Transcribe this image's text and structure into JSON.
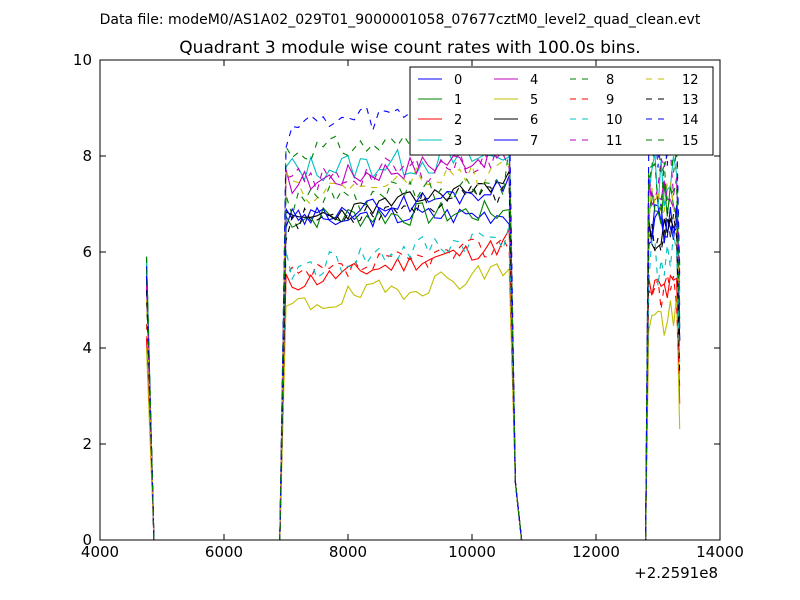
{
  "chart_data": {
    "type": "line",
    "suptitle": "Data file: modeM0/AS1A02_029T01_9000001058_07677cztM0_level2_quad_clean.evt",
    "title": "Quadrant 3 module wise count rates with 100.0s bins.",
    "xlabel": "",
    "ylabel": "",
    "x_offset_label": "+2.2591e8",
    "xlim": [
      4000,
      14000
    ],
    "ylim": [
      0,
      10
    ],
    "xticks": [
      4000,
      6000,
      8000,
      10000,
      12000,
      14000
    ],
    "xtick_labels": [
      "4000",
      "6000",
      "8000",
      "10000",
      "12000",
      "14000"
    ],
    "yticks": [
      0,
      2,
      4,
      6,
      8,
      10
    ],
    "ytick_labels": [
      "0",
      "2",
      "4",
      "6",
      "8",
      "10"
    ],
    "legend_location": "upper-right",
    "legend_columns": 4,
    "segments": {
      "seg1": {
        "x": [
          4750,
          4850,
          4870
        ]
      },
      "seg2": {
        "x_start": 6900,
        "x_end": 10800,
        "step": 100
      },
      "seg3": {
        "x_start": 12800,
        "x_end": 13350,
        "step": 50
      }
    },
    "series": [
      {
        "name": "0",
        "color": "#0000ff",
        "dash": "solid",
        "seg1": [
          5.6,
          1.0,
          0
        ],
        "mean": 6.7,
        "peak": 6.6,
        "ramp": 0.12,
        "noise": 0.22,
        "seed": 3
      },
      {
        "name": "1",
        "color": "#008000",
        "dash": "solid",
        "seg1": [
          5.9,
          1.0,
          0
        ],
        "mean": 6.7,
        "peak": 7.0,
        "ramp": 0.15,
        "noise": 0.25,
        "seed": 7
      },
      {
        "name": "2",
        "color": "#ff0000",
        "dash": "solid",
        "seg1": [
          4.2,
          0.8,
          0
        ],
        "mean": 5.3,
        "peak": 5.2,
        "ramp": 0.9,
        "noise": 0.2,
        "seed": 11
      },
      {
        "name": "3",
        "color": "#00bfbf",
        "dash": "solid",
        "seg1": [
          5.8,
          1.0,
          0
        ],
        "mean": 7.7,
        "peak": 7.5,
        "ramp": 0.3,
        "noise": 0.3,
        "seed": 13
      },
      {
        "name": "4",
        "color": "#bf00bf",
        "dash": "solid",
        "seg1": [
          5.5,
          1.0,
          0
        ],
        "mean": 7.4,
        "peak": 7.2,
        "ramp": 0.7,
        "noise": 0.25,
        "seed": 17
      },
      {
        "name": "5",
        "color": "#bfbf00",
        "dash": "solid",
        "seg1": [
          4.0,
          0.7,
          0
        ],
        "mean": 4.8,
        "peak": 4.6,
        "ramp": 0.9,
        "noise": 0.25,
        "seed": 19
      },
      {
        "name": "6",
        "color": "#000000",
        "dash": "solid",
        "seg1": [
          5.4,
          1.0,
          0
        ],
        "mean": 6.6,
        "peak": 6.4,
        "ramp": 0.9,
        "noise": 0.18,
        "seed": 23
      },
      {
        "name": "7",
        "color": "#0000ff",
        "dash": "solid",
        "seg1": [
          5.5,
          1.0,
          0
        ],
        "mean": 6.6,
        "peak": 6.6,
        "ramp": 0.8,
        "noise": 0.22,
        "seed": 29
      },
      {
        "name": "8",
        "color": "#008000",
        "dash": "dashed",
        "seg1": [
          5.9,
          1.0,
          0
        ],
        "mean": 8.1,
        "peak": 7.9,
        "ramp": 0.3,
        "noise": 0.25,
        "seed": 31
      },
      {
        "name": "9",
        "color": "#ff0000",
        "dash": "dashed",
        "seg1": [
          4.5,
          0.9,
          0
        ],
        "mean": 5.4,
        "peak": 5.3,
        "ramp": 0.8,
        "noise": 0.25,
        "seed": 37
      },
      {
        "name": "10",
        "color": "#00bfbf",
        "dash": "dashed",
        "seg1": [
          5.0,
          1.0,
          0
        ],
        "mean": 5.6,
        "peak": 5.8,
        "ramp": 0.8,
        "noise": 0.3,
        "seed": 41
      },
      {
        "name": "11",
        "color": "#bf00bf",
        "dash": "dashed",
        "seg1": [
          5.3,
          1.0,
          0
        ],
        "mean": 7.4,
        "peak": 7.6,
        "ramp": 0.6,
        "noise": 0.3,
        "seed": 43
      },
      {
        "name": "12",
        "color": "#bfbf00",
        "dash": "dashed",
        "seg1": [
          5.0,
          1.0,
          0
        ],
        "mean": 7.2,
        "peak": 7.0,
        "ramp": 0.5,
        "noise": 0.3,
        "seed": 47
      },
      {
        "name": "13",
        "color": "#000000",
        "dash": "dashed",
        "seg1": [
          5.2,
          1.0,
          0
        ],
        "mean": 6.6,
        "peak": 6.4,
        "ramp": 0.7,
        "noise": 0.25,
        "seed": 53
      },
      {
        "name": "14",
        "color": "#0000ff",
        "dash": "dashed",
        "seg1": [
          5.7,
          1.0,
          0
        ],
        "mean": 8.6,
        "peak": 8.3,
        "ramp": 0.5,
        "noise": 0.3,
        "seed": 59
      },
      {
        "name": "15",
        "color": "#008000",
        "dash": "dashed",
        "seg1": [
          5.9,
          1.0,
          0
        ],
        "mean": 7.0,
        "peak": 7.3,
        "ramp": 0.4,
        "noise": 0.3,
        "seed": 61
      }
    ]
  }
}
